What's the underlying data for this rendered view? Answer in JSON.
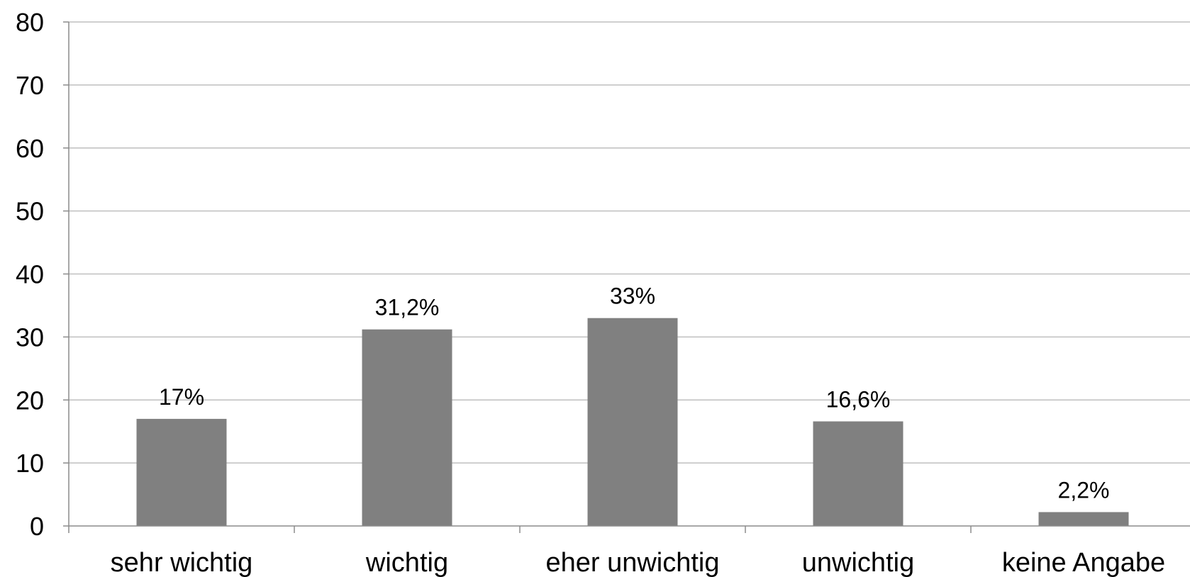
{
  "chart_data": {
    "type": "bar",
    "categories": [
      "sehr wichtig",
      "wichtig",
      "eher unwichtig",
      "unwichtig",
      "keine Angabe"
    ],
    "values": [
      17,
      31.2,
      33,
      16.6,
      2.2
    ],
    "data_labels": [
      "17%",
      "31,2%",
      "33%",
      "16,6%",
      "2,2%"
    ],
    "title": "",
    "xlabel": "",
    "ylabel": "",
    "ylim": [
      0,
      80
    ],
    "yticks": [
      0,
      10,
      20,
      30,
      40,
      50,
      60,
      70,
      80
    ],
    "grid": true,
    "legend": "none",
    "colors": {
      "bar": "#808080",
      "grid": "#bfbfbf",
      "axis": "#8c8c8c"
    }
  }
}
